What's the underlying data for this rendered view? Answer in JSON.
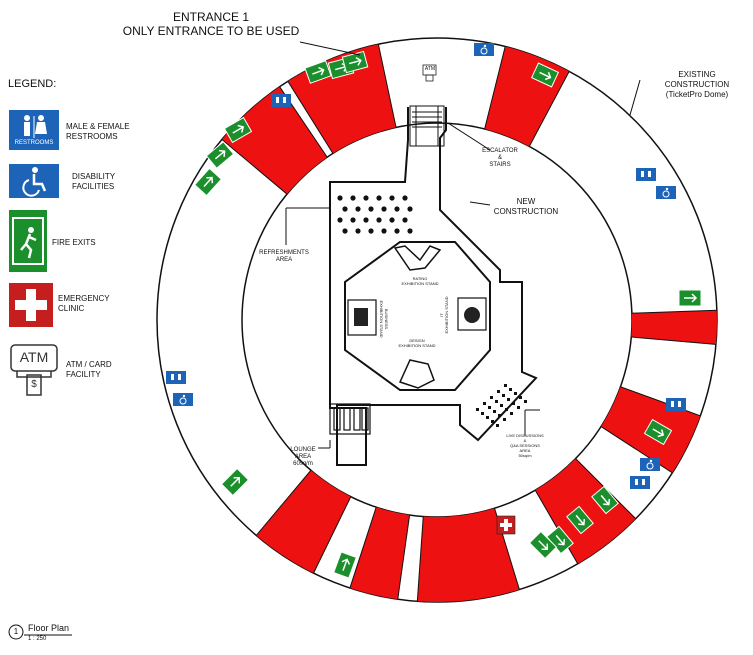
{
  "entrance": {
    "line1": "ENTRANCE 1",
    "line2": "ONLY ENTRANCE TO BE USED"
  },
  "existing": {
    "line1": "EXISTING",
    "line2": "CONSTRUCTION",
    "line3": "(TicketPro Dome)"
  },
  "new_construction": {
    "line1": "NEW",
    "line2": "CONSTRUCTION"
  },
  "escalator": {
    "line1": "ESCALATOR",
    "line2": "&",
    "line3": "STAIRS"
  },
  "refreshments": {
    "line1": "REFRESHMENTS",
    "line2": "AREA"
  },
  "lounge": {
    "line1": "LOUNGE",
    "line2": "AREA",
    "line3": "60sq/m"
  },
  "discussions": {
    "line1": "LIVE DISCUSSIONS",
    "line2": "&",
    "line3": "Q&A SESSIONS",
    "line4": "AREA",
    "line5": "50sq/m"
  },
  "stands": {
    "rating": {
      "line1": "RATING",
      "line2": "EXHIBITION STAND"
    },
    "business": {
      "line1": "BUSINESS",
      "line2": "EXHIBITION STAND"
    },
    "it": {
      "line1": "IT",
      "line2": "EXHIBITION STAND"
    },
    "design": {
      "line1": "DESIGN",
      "line2": "EXHIBITION STAND"
    }
  },
  "legend": {
    "title": "LEGEND:",
    "restrooms": {
      "line1": "MALE & FEMALE",
      "line2": "RESTROOMS",
      "icon_label": "RESTROOMS"
    },
    "disability": {
      "line1": "DISABILITY",
      "line2": "FACILITIES"
    },
    "fire_exits": {
      "label": "FIRE EXITS"
    },
    "clinic": {
      "line1": "EMERGENCY",
      "line2": "CLINIC"
    },
    "atm": {
      "line1": "ATM / CARD",
      "line2": "FACILITY",
      "icon_label": "ATM",
      "icon_symbol": "$"
    }
  },
  "small_atm_label": "ATM",
  "floor_plan": {
    "number": "1",
    "title": "Floor Plan",
    "scale": "1 : 250"
  },
  "colors": {
    "exit_red": "#ee1111",
    "exit_green": "#1a8f2c",
    "restroom_blue": "#1d63b8",
    "clinic_red": "#c41e1e"
  }
}
